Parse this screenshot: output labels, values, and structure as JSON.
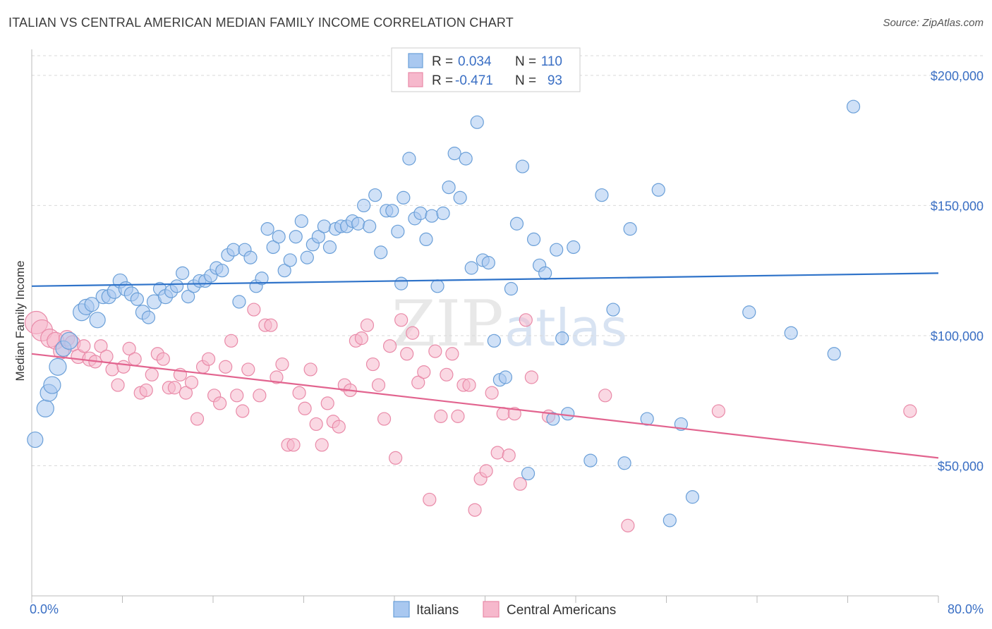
{
  "header": {
    "title": "ITALIAN VS CENTRAL AMERICAN MEDIAN FAMILY INCOME CORRELATION CHART",
    "source": "Source: ZipAtlas.com"
  },
  "watermark": {
    "zip": "ZIP",
    "atlas": "atlas"
  },
  "legend": {
    "r_label": "R =",
    "n_label": "N =",
    "entries": [
      {
        "r": "0.034",
        "n": "110"
      },
      {
        "r": "-0.471",
        "n": "93"
      }
    ]
  },
  "colors": {
    "italians_fill": "#a9c8f0",
    "italians_stroke": "#6a9fd8",
    "italians_line": "#2f73c9",
    "central_fill": "#f6b8cc",
    "central_stroke": "#e98aa8",
    "central_line": "#e2648f",
    "grid": "#d9d9d9",
    "tick_label": "#3a6fc4"
  },
  "chart_data": {
    "type": "scatter",
    "xlabel": "",
    "ylabel": "Median Family Income",
    "xlim": [
      0,
      80
    ],
    "ylim": [
      0,
      210000
    ],
    "x_tick_labels": [
      "0.0%",
      "80.0%"
    ],
    "y_ticks": [
      50000,
      100000,
      150000,
      200000
    ],
    "y_tick_labels": [
      "$50,000",
      "$100,000",
      "$150,000",
      "$200,000"
    ],
    "grid": true,
    "legend_position": "top-center",
    "series": [
      {
        "name": "Italians",
        "r": 0.034,
        "n": 110,
        "trend": [
          [
            0,
            119000
          ],
          [
            80,
            124000
          ]
        ],
        "points": [
          [
            0.3,
            60000,
            11
          ],
          [
            1.2,
            72000,
            12
          ],
          [
            1.5,
            78000,
            12
          ],
          [
            1.8,
            81000,
            12
          ],
          [
            2.3,
            88000,
            12
          ],
          [
            2.8,
            95000,
            11
          ],
          [
            3.3,
            98000,
            12
          ],
          [
            4.4,
            109000,
            12
          ],
          [
            4.8,
            111000,
            11
          ],
          [
            5.3,
            112000,
            10
          ],
          [
            5.8,
            106000,
            11
          ],
          [
            6.3,
            115000,
            10
          ],
          [
            6.8,
            115000,
            10
          ],
          [
            7.3,
            117000,
            10
          ],
          [
            7.8,
            121000,
            10
          ],
          [
            8.3,
            118000,
            10
          ],
          [
            8.8,
            116000,
            10
          ],
          [
            9.3,
            114000,
            9
          ],
          [
            9.8,
            109000,
            10
          ],
          [
            10.3,
            107000,
            9
          ],
          [
            10.8,
            113000,
            10
          ],
          [
            11.3,
            118000,
            9
          ],
          [
            11.8,
            115000,
            10
          ],
          [
            12.3,
            117000,
            9
          ],
          [
            12.8,
            119000,
            9
          ],
          [
            13.3,
            124000,
            9
          ],
          [
            13.8,
            115000,
            9
          ],
          [
            14.3,
            119000,
            9
          ],
          [
            14.8,
            121000,
            9
          ],
          [
            15.3,
            121000,
            9
          ],
          [
            15.8,
            123000,
            9
          ],
          [
            16.3,
            126000,
            9
          ],
          [
            16.8,
            125000,
            9
          ],
          [
            17.3,
            131000,
            9
          ],
          [
            17.8,
            133000,
            9
          ],
          [
            18.3,
            113000,
            9
          ],
          [
            18.8,
            133000,
            9
          ],
          [
            19.3,
            130000,
            9
          ],
          [
            19.8,
            119000,
            9
          ],
          [
            20.3,
            122000,
            9
          ],
          [
            20.8,
            141000,
            9
          ],
          [
            21.3,
            134000,
            9
          ],
          [
            21.8,
            138000,
            9
          ],
          [
            22.3,
            125000,
            9
          ],
          [
            22.8,
            129000,
            9
          ],
          [
            23.3,
            138000,
            9
          ],
          [
            23.8,
            144000,
            9
          ],
          [
            24.3,
            130000,
            9
          ],
          [
            24.8,
            135000,
            9
          ],
          [
            25.3,
            138000,
            9
          ],
          [
            25.8,
            142000,
            9
          ],
          [
            26.3,
            134000,
            9
          ],
          [
            26.8,
            141000,
            9
          ],
          [
            27.3,
            142000,
            9
          ],
          [
            27.8,
            142000,
            9
          ],
          [
            28.3,
            144000,
            9
          ],
          [
            28.8,
            143000,
            9
          ],
          [
            29.3,
            150000,
            9
          ],
          [
            29.8,
            142000,
            9
          ],
          [
            30.3,
            154000,
            9
          ],
          [
            30.8,
            132000,
            9
          ],
          [
            31.3,
            148000,
            9
          ],
          [
            31.8,
            148000,
            9
          ],
          [
            32.3,
            140000,
            9
          ],
          [
            32.8,
            153000,
            9
          ],
          [
            33.3,
            168000,
            9
          ],
          [
            33.8,
            145000,
            9
          ],
          [
            34.3,
            147000,
            9
          ],
          [
            34.8,
            137000,
            9
          ],
          [
            35.3,
            146000,
            9
          ],
          [
            35.8,
            119000,
            9
          ],
          [
            36.3,
            147000,
            9
          ],
          [
            36.8,
            157000,
            9
          ],
          [
            37.3,
            170000,
            9
          ],
          [
            37.8,
            153000,
            9
          ],
          [
            38.3,
            168000,
            9
          ],
          [
            38.8,
            126000,
            9
          ],
          [
            39.3,
            182000,
            9
          ],
          [
            39.8,
            129000,
            9
          ],
          [
            40.3,
            128000,
            9
          ],
          [
            40.8,
            98000,
            9
          ],
          [
            41.3,
            83000,
            9
          ],
          [
            41.8,
            84000,
            9
          ],
          [
            42.3,
            118000,
            9
          ],
          [
            42.8,
            143000,
            9
          ],
          [
            43.3,
            165000,
            9
          ],
          [
            43.8,
            47000,
            9
          ],
          [
            44.3,
            137000,
            9
          ],
          [
            44.8,
            127000,
            9
          ],
          [
            45.3,
            124000,
            9
          ],
          [
            46.3,
            133000,
            9
          ],
          [
            46.8,
            99000,
            9
          ],
          [
            47.3,
            70000,
            9
          ],
          [
            47.8,
            134000,
            9
          ],
          [
            49.3,
            52000,
            9
          ],
          [
            50.3,
            154000,
            9
          ],
          [
            51.3,
            110000,
            9
          ],
          [
            52.3,
            51000,
            9
          ],
          [
            52.8,
            141000,
            9
          ],
          [
            54.3,
            68000,
            9
          ],
          [
            55.3,
            156000,
            9
          ],
          [
            56.3,
            29000,
            9
          ],
          [
            57.3,
            66000,
            9
          ],
          [
            58.3,
            38000,
            9
          ],
          [
            63.3,
            109000,
            9
          ],
          [
            67.0,
            101000,
            9
          ],
          [
            70.8,
            93000,
            9
          ],
          [
            72.5,
            188000,
            9
          ],
          [
            46.0,
            68000,
            9
          ],
          [
            32.6,
            120000,
            9
          ]
        ]
      },
      {
        "name": "Central Americans",
        "r": -0.471,
        "n": 93,
        "trend": [
          [
            0,
            93000
          ],
          [
            80,
            53000
          ]
        ],
        "points": [
          [
            0.4,
            105000,
            16
          ],
          [
            0.9,
            102000,
            15
          ],
          [
            1.6,
            99000,
            13
          ],
          [
            2.1,
            98000,
            12
          ],
          [
            2.6,
            94000,
            11
          ],
          [
            3.1,
            99000,
            11
          ],
          [
            3.6,
            97000,
            11
          ],
          [
            4.1,
            92000,
            10
          ],
          [
            4.6,
            96000,
            9
          ],
          [
            5.1,
            91000,
            10
          ],
          [
            5.6,
            90000,
            9
          ],
          [
            6.1,
            96000,
            9
          ],
          [
            6.6,
            92000,
            9
          ],
          [
            7.1,
            87000,
            9
          ],
          [
            7.6,
            81000,
            9
          ],
          [
            8.1,
            88000,
            9
          ],
          [
            8.6,
            95000,
            9
          ],
          [
            9.1,
            91000,
            9
          ],
          [
            9.6,
            78000,
            9
          ],
          [
            10.1,
            79000,
            9
          ],
          [
            10.6,
            85000,
            9
          ],
          [
            11.1,
            93000,
            9
          ],
          [
            11.6,
            91000,
            9
          ],
          [
            12.1,
            80000,
            9
          ],
          [
            12.6,
            80000,
            9
          ],
          [
            13.1,
            85000,
            9
          ],
          [
            13.6,
            78000,
            9
          ],
          [
            14.1,
            82000,
            9
          ],
          [
            14.6,
            68000,
            9
          ],
          [
            15.1,
            88000,
            9
          ],
          [
            15.6,
            91000,
            9
          ],
          [
            16.1,
            77000,
            9
          ],
          [
            16.6,
            74000,
            9
          ],
          [
            17.1,
            88000,
            9
          ],
          [
            17.6,
            98000,
            9
          ],
          [
            18.1,
            77000,
            9
          ],
          [
            18.6,
            71000,
            9
          ],
          [
            19.1,
            87000,
            9
          ],
          [
            19.6,
            110000,
            9
          ],
          [
            20.1,
            77000,
            9
          ],
          [
            20.6,
            104000,
            9
          ],
          [
            21.1,
            104000,
            9
          ],
          [
            21.6,
            84000,
            9
          ],
          [
            22.1,
            89000,
            9
          ],
          [
            22.6,
            58000,
            9
          ],
          [
            23.1,
            58000,
            9
          ],
          [
            23.6,
            78000,
            9
          ],
          [
            24.1,
            72000,
            9
          ],
          [
            24.6,
            87000,
            9
          ],
          [
            25.1,
            66000,
            9
          ],
          [
            25.6,
            58000,
            9
          ],
          [
            26.1,
            74000,
            9
          ],
          [
            26.6,
            67000,
            9
          ],
          [
            27.1,
            65000,
            9
          ],
          [
            27.6,
            81000,
            9
          ],
          [
            28.1,
            79000,
            9
          ],
          [
            28.6,
            98000,
            9
          ],
          [
            29.1,
            99000,
            9
          ],
          [
            29.6,
            104000,
            9
          ],
          [
            30.1,
            89000,
            9
          ],
          [
            30.6,
            81000,
            9
          ],
          [
            31.1,
            68000,
            9
          ],
          [
            31.6,
            96000,
            9
          ],
          [
            32.1,
            53000,
            9
          ],
          [
            32.6,
            106000,
            9
          ],
          [
            33.1,
            93000,
            9
          ],
          [
            33.6,
            101000,
            9
          ],
          [
            34.1,
            82000,
            9
          ],
          [
            34.6,
            86000,
            9
          ],
          [
            35.1,
            37000,
            9
          ],
          [
            35.6,
            94000,
            9
          ],
          [
            36.1,
            69000,
            9
          ],
          [
            36.6,
            85000,
            9
          ],
          [
            37.1,
            93000,
            9
          ],
          [
            37.6,
            69000,
            9
          ],
          [
            38.1,
            81000,
            9
          ],
          [
            38.6,
            81000,
            9
          ],
          [
            39.1,
            33000,
            9
          ],
          [
            39.6,
            45000,
            9
          ],
          [
            40.1,
            48000,
            9
          ],
          [
            40.6,
            78000,
            9
          ],
          [
            41.1,
            55000,
            9
          ],
          [
            41.6,
            70000,
            9
          ],
          [
            42.1,
            54000,
            9
          ],
          [
            42.6,
            70000,
            9
          ],
          [
            43.1,
            43000,
            9
          ],
          [
            43.6,
            106000,
            9
          ],
          [
            44.1,
            84000,
            9
          ],
          [
            45.6,
            69000,
            9
          ],
          [
            50.6,
            77000,
            9
          ],
          [
            52.6,
            27000,
            9
          ],
          [
            60.6,
            71000,
            9
          ],
          [
            77.5,
            71000,
            9
          ]
        ]
      }
    ]
  },
  "bottom_legend": [
    "Italians",
    "Central Americans"
  ]
}
